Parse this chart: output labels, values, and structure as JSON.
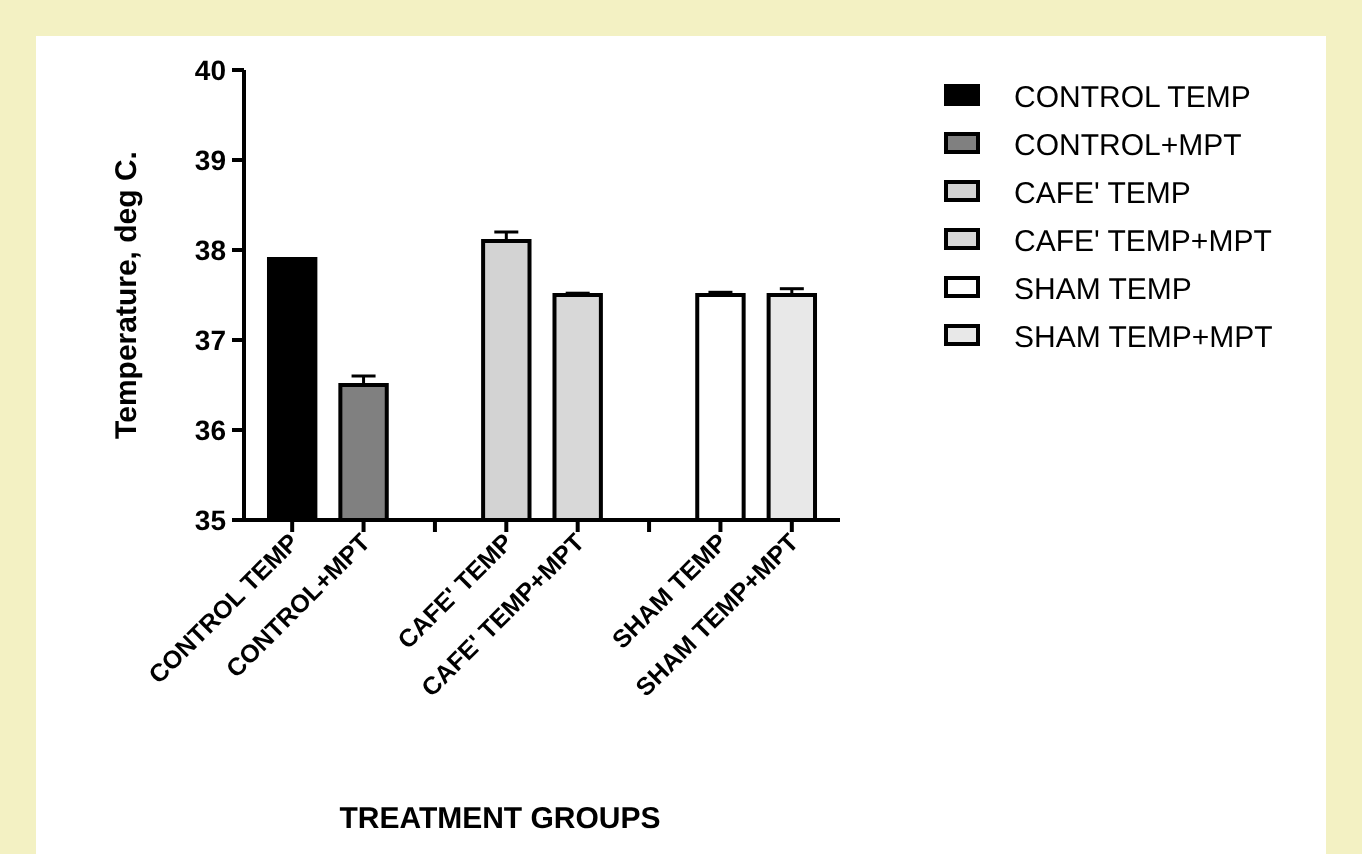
{
  "chart_data": {
    "type": "bar",
    "xlabel": "TREATMENT GROUPS",
    "ylabel": "Temperature, deg C.",
    "categories": [
      "CONTROL TEMP",
      "CONTROL+MPT",
      null,
      "CAFE' TEMP",
      "CAFE' TEMP+MPT",
      null,
      "SHAM TEMP",
      "SHAM TEMP+MPT"
    ],
    "series": [
      {
        "name": "CONTROL TEMP",
        "color": "#000000",
        "values": [
          37.9,
          null,
          null,
          null,
          null,
          null,
          null,
          null
        ]
      },
      {
        "name": "CONTROL+MPT",
        "color": "#808080",
        "values": [
          null,
          36.5,
          null,
          null,
          null,
          null,
          null,
          null
        ],
        "errors": [
          null,
          [
            36.5,
            36.6
          ],
          null,
          null,
          null,
          null,
          null,
          null
        ]
      },
      {
        "name": "CAFE' TEMP",
        "color": "#d3d3d3",
        "values": [
          null,
          null,
          null,
          38.1,
          null,
          null,
          null,
          null
        ],
        "errors": [
          null,
          null,
          null,
          [
            38.1,
            38.2
          ],
          null,
          null,
          null,
          null
        ]
      },
      {
        "name": "CAFE' TEMP+MPT",
        "color": "#d8d8d8",
        "values": [
          null,
          null,
          null,
          null,
          37.5,
          null,
          null,
          null
        ],
        "errors": [
          null,
          null,
          null,
          null,
          [
            37.5,
            37.52
          ],
          null,
          null,
          null
        ]
      },
      {
        "name": "SHAM TEMP",
        "color": "#ffffff",
        "values": [
          null,
          null,
          null,
          null,
          null,
          null,
          37.5,
          null
        ],
        "errors": [
          null,
          null,
          null,
          null,
          null,
          null,
          [
            37.5,
            37.53
          ],
          null
        ]
      },
      {
        "name": "SHAM TEMP+MPT",
        "color": "#e8e8e8",
        "values": [
          null,
          null,
          null,
          null,
          null,
          null,
          null,
          37.5
        ],
        "errors": [
          null,
          null,
          null,
          null,
          null,
          null,
          null,
          [
            37.5,
            37.57
          ]
        ]
      }
    ],
    "ylim": [
      35,
      40
    ],
    "yticks": [
      35,
      36,
      37,
      38,
      39,
      40
    ],
    "grid": false,
    "legend": "right"
  }
}
